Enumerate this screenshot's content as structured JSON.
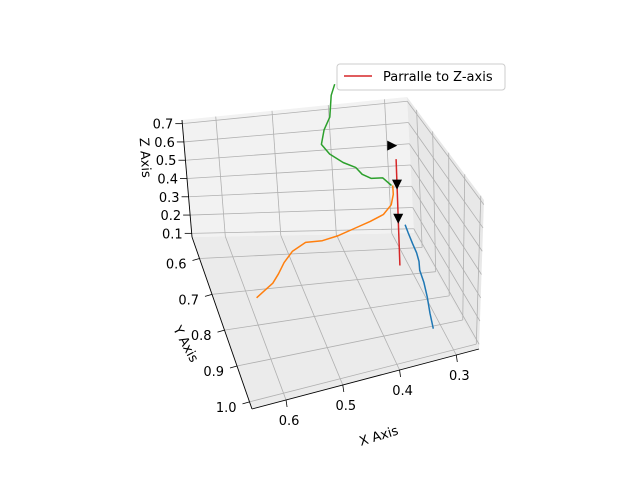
{
  "chart_data": {
    "type": "line",
    "projection": "3d",
    "title": "",
    "xlabel": "X Axis",
    "ylabel": "Y Axis",
    "zlabel": "Z Axis",
    "x_ticks": [
      "0.3",
      "0.4",
      "0.5",
      "0.6"
    ],
    "y_ticks": [
      "0.6",
      "0.7",
      "0.8",
      "0.9",
      "1.0"
    ],
    "z_ticks": [
      "0.1",
      "0.2",
      "0.3",
      "0.4",
      "0.5",
      "0.6",
      "0.7"
    ],
    "grid": true,
    "legend": {
      "position": "top-right",
      "entries": [
        {
          "label": "Parralle to Z-axis",
          "color": "#d62728"
        }
      ]
    },
    "series": [
      {
        "color": "#1f77b4",
        "points": [
          [
            0.305,
            0.87,
            0.03
          ],
          [
            0.305,
            0.845,
            0.07
          ],
          [
            0.305,
            0.825,
            0.12
          ],
          [
            0.305,
            0.8,
            0.16
          ],
          [
            0.305,
            0.77,
            0.18
          ],
          [
            0.3,
            0.745,
            0.19
          ],
          [
            0.298,
            0.72,
            0.2
          ],
          [
            0.3,
            0.7,
            0.22
          ],
          [
            0.305,
            0.69,
            0.26
          ],
          [
            0.31,
            0.69,
            0.3
          ]
        ]
      },
      {
        "color": "#ff7f0e",
        "points": [
          [
            0.59,
            0.745,
            0.12
          ],
          [
            0.575,
            0.735,
            0.13
          ],
          [
            0.555,
            0.72,
            0.14
          ],
          [
            0.54,
            0.7,
            0.15
          ],
          [
            0.525,
            0.68,
            0.17
          ],
          [
            0.505,
            0.66,
            0.19
          ],
          [
            0.48,
            0.655,
            0.22
          ],
          [
            0.45,
            0.655,
            0.22
          ],
          [
            0.42,
            0.65,
            0.23
          ],
          [
            0.39,
            0.645,
            0.25
          ],
          [
            0.36,
            0.64,
            0.27
          ],
          [
            0.335,
            0.635,
            0.29
          ],
          [
            0.318,
            0.625,
            0.32
          ],
          [
            0.31,
            0.61,
            0.35
          ],
          [
            0.308,
            0.6,
            0.38
          ]
        ]
      },
      {
        "color": "#2ca02c",
        "points": [
          [
            0.31,
            0.6,
            0.38
          ],
          [
            0.325,
            0.6,
            0.42
          ],
          [
            0.345,
            0.598,
            0.42
          ],
          [
            0.36,
            0.595,
            0.44
          ],
          [
            0.37,
            0.59,
            0.47
          ],
          [
            0.39,
            0.583,
            0.49
          ],
          [
            0.41,
            0.57,
            0.52
          ],
          [
            0.42,
            0.555,
            0.55
          ],
          [
            0.41,
            0.54,
            0.6
          ],
          [
            0.395,
            0.525,
            0.64
          ],
          [
            0.39,
            0.515,
            0.68
          ],
          [
            0.385,
            0.505,
            0.72
          ],
          [
            0.375,
            0.495,
            0.76
          ]
        ]
      },
      {
        "name": "Parralle to Z-axis",
        "color": "#d62728",
        "points": [
          [
            0.31,
            0.64,
            0.05
          ],
          [
            0.31,
            0.64,
            0.55
          ]
        ]
      }
    ],
    "markers": [
      {
        "shape": "triangle-down",
        "color": "#000000",
        "point": [
          0.31,
          0.64,
          0.27
        ]
      },
      {
        "shape": "triangle-down",
        "color": "#000000",
        "point": [
          0.31,
          0.64,
          0.43
        ]
      },
      {
        "shape": "triangle-right",
        "color": "#000000",
        "point": [
          0.31,
          0.61,
          0.58
        ]
      }
    ]
  }
}
